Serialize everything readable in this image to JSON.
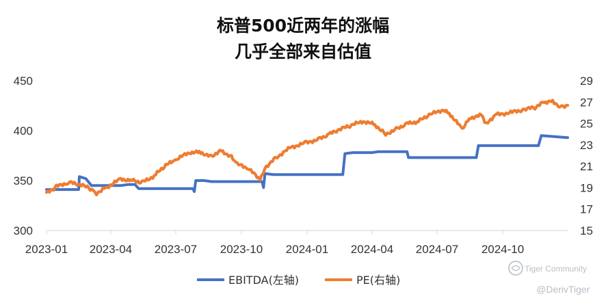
{
  "chart_data": {
    "type": "line",
    "title": [
      "标普500近两年的涨幅",
      "几乎全部来自估值"
    ],
    "x_ticks": [
      "2023-01",
      "2023-04",
      "2023-07",
      "2023-10",
      "2024-01",
      "2024-04",
      "2024-07",
      "2024-10"
    ],
    "x_range": [
      "2023-01-01",
      "2024-12-31"
    ],
    "y_left": {
      "ticks": [
        "300",
        "350",
        "400",
        "450"
      ],
      "range": [
        300,
        450
      ]
    },
    "y_right": {
      "ticks": [
        "15",
        "17",
        "19",
        "21",
        "23",
        "25",
        "27",
        "29"
      ],
      "range": [
        15,
        29
      ]
    },
    "grid": false,
    "legend_position": "bottom",
    "series": [
      {
        "name": "EBITDA(左轴)",
        "axis": "left",
        "color": "#4472c4",
        "points": [
          [
            "2023-01-01",
            341
          ],
          [
            "2023-02-15",
            341
          ],
          [
            "2023-02-16",
            354
          ],
          [
            "2023-02-25",
            352
          ],
          [
            "2023-03-05",
            345
          ],
          [
            "2023-04-15",
            345
          ],
          [
            "2023-04-25",
            346
          ],
          [
            "2023-05-05",
            346
          ],
          [
            "2023-05-10",
            342
          ],
          [
            "2023-07-25",
            342
          ],
          [
            "2023-07-27",
            339
          ],
          [
            "2023-07-29",
            350
          ],
          [
            "2023-08-10",
            350
          ],
          [
            "2023-08-20",
            349
          ],
          [
            "2023-10-30",
            349
          ],
          [
            "2023-11-01",
            343
          ],
          [
            "2023-11-03",
            357
          ],
          [
            "2023-11-15",
            356
          ],
          [
            "2024-02-20",
            356
          ],
          [
            "2024-02-23",
            377
          ],
          [
            "2024-03-05",
            378
          ],
          [
            "2024-04-01",
            378
          ],
          [
            "2024-04-10",
            379
          ],
          [
            "2024-05-20",
            379
          ],
          [
            "2024-05-22",
            373
          ],
          [
            "2024-08-25",
            373
          ],
          [
            "2024-08-28",
            385
          ],
          [
            "2024-11-20",
            385
          ],
          [
            "2024-11-24",
            395
          ],
          [
            "2024-12-31",
            393
          ]
        ]
      },
      {
        "name": "PE(右轴)",
        "axis": "right",
        "color": "#ed7d31",
        "points": [
          [
            "2023-01-01",
            18.5
          ],
          [
            "2023-01-15",
            19.1
          ],
          [
            "2023-02-01",
            19.5
          ],
          [
            "2023-02-15",
            19.3
          ],
          [
            "2023-03-01",
            19.0
          ],
          [
            "2023-03-12",
            18.5
          ],
          [
            "2023-03-25",
            19.0
          ],
          [
            "2023-04-15",
            19.8
          ],
          [
            "2023-05-01",
            19.7
          ],
          [
            "2023-05-15",
            19.5
          ],
          [
            "2023-06-01",
            20.1
          ],
          [
            "2023-06-15",
            21.0
          ],
          [
            "2023-07-01",
            21.6
          ],
          [
            "2023-07-20",
            22.3
          ],
          [
            "2023-08-05",
            22.3
          ],
          [
            "2023-08-20",
            21.9
          ],
          [
            "2023-09-01",
            22.5
          ],
          [
            "2023-09-15",
            22.0
          ],
          [
            "2023-09-25",
            21.2
          ],
          [
            "2023-10-10",
            20.8
          ],
          [
            "2023-10-27",
            19.8
          ],
          [
            "2023-11-05",
            21.0
          ],
          [
            "2023-11-20",
            21.9
          ],
          [
            "2023-12-10",
            22.8
          ],
          [
            "2023-12-31",
            23.2
          ],
          [
            "2024-01-15",
            23.5
          ],
          [
            "2024-02-01",
            24.0
          ],
          [
            "2024-02-15",
            24.4
          ],
          [
            "2024-03-01",
            24.8
          ],
          [
            "2024-03-20",
            25.2
          ],
          [
            "2024-04-05",
            24.9
          ],
          [
            "2024-04-20",
            24.0
          ],
          [
            "2024-05-05",
            24.5
          ],
          [
            "2024-05-20",
            25.0
          ],
          [
            "2024-06-05",
            25.2
          ],
          [
            "2024-06-20",
            25.8
          ],
          [
            "2024-07-10",
            26.3
          ],
          [
            "2024-07-20",
            25.8
          ],
          [
            "2024-08-05",
            24.5
          ],
          [
            "2024-08-15",
            25.5
          ],
          [
            "2024-09-01",
            25.8
          ],
          [
            "2024-09-08",
            24.9
          ],
          [
            "2024-09-20",
            25.8
          ],
          [
            "2024-10-10",
            26.0
          ],
          [
            "2024-10-31",
            26.3
          ],
          [
            "2024-11-15",
            26.5
          ],
          [
            "2024-11-28",
            27.0
          ],
          [
            "2024-12-10",
            27.1
          ],
          [
            "2024-12-20",
            26.6
          ],
          [
            "2024-12-31",
            26.7
          ]
        ]
      }
    ]
  },
  "watermark": {
    "brand": "Tiger Community",
    "handle": "@DerivTiger"
  }
}
